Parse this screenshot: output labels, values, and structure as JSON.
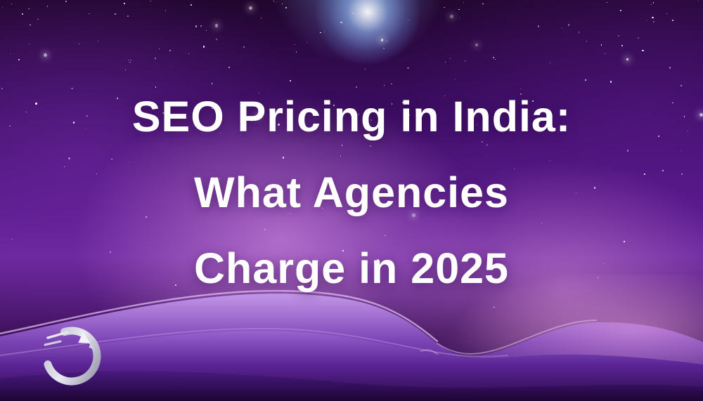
{
  "hero": {
    "title_lines": [
      "SEO Pricing in India:",
      "What Agencies",
      "Charge in 2025"
    ],
    "full_title": "SEO Pricing in India: What Agencies Charge in 2025"
  },
  "branding": {
    "logo_icon": "rocket-swoosh-logo"
  },
  "colors": {
    "background_dark": "#23053c",
    "background_mid_purple": "#5b1b8f",
    "glow_magenta": "#eca6ee",
    "glow_pink": "#f0a5e8",
    "star_blue_glow": "#96c3ff",
    "wave_light": "#bb8ce4",
    "wave_dark": "#200639",
    "title_text": "#ffffff",
    "logo_silver": "#d9d9e4"
  }
}
